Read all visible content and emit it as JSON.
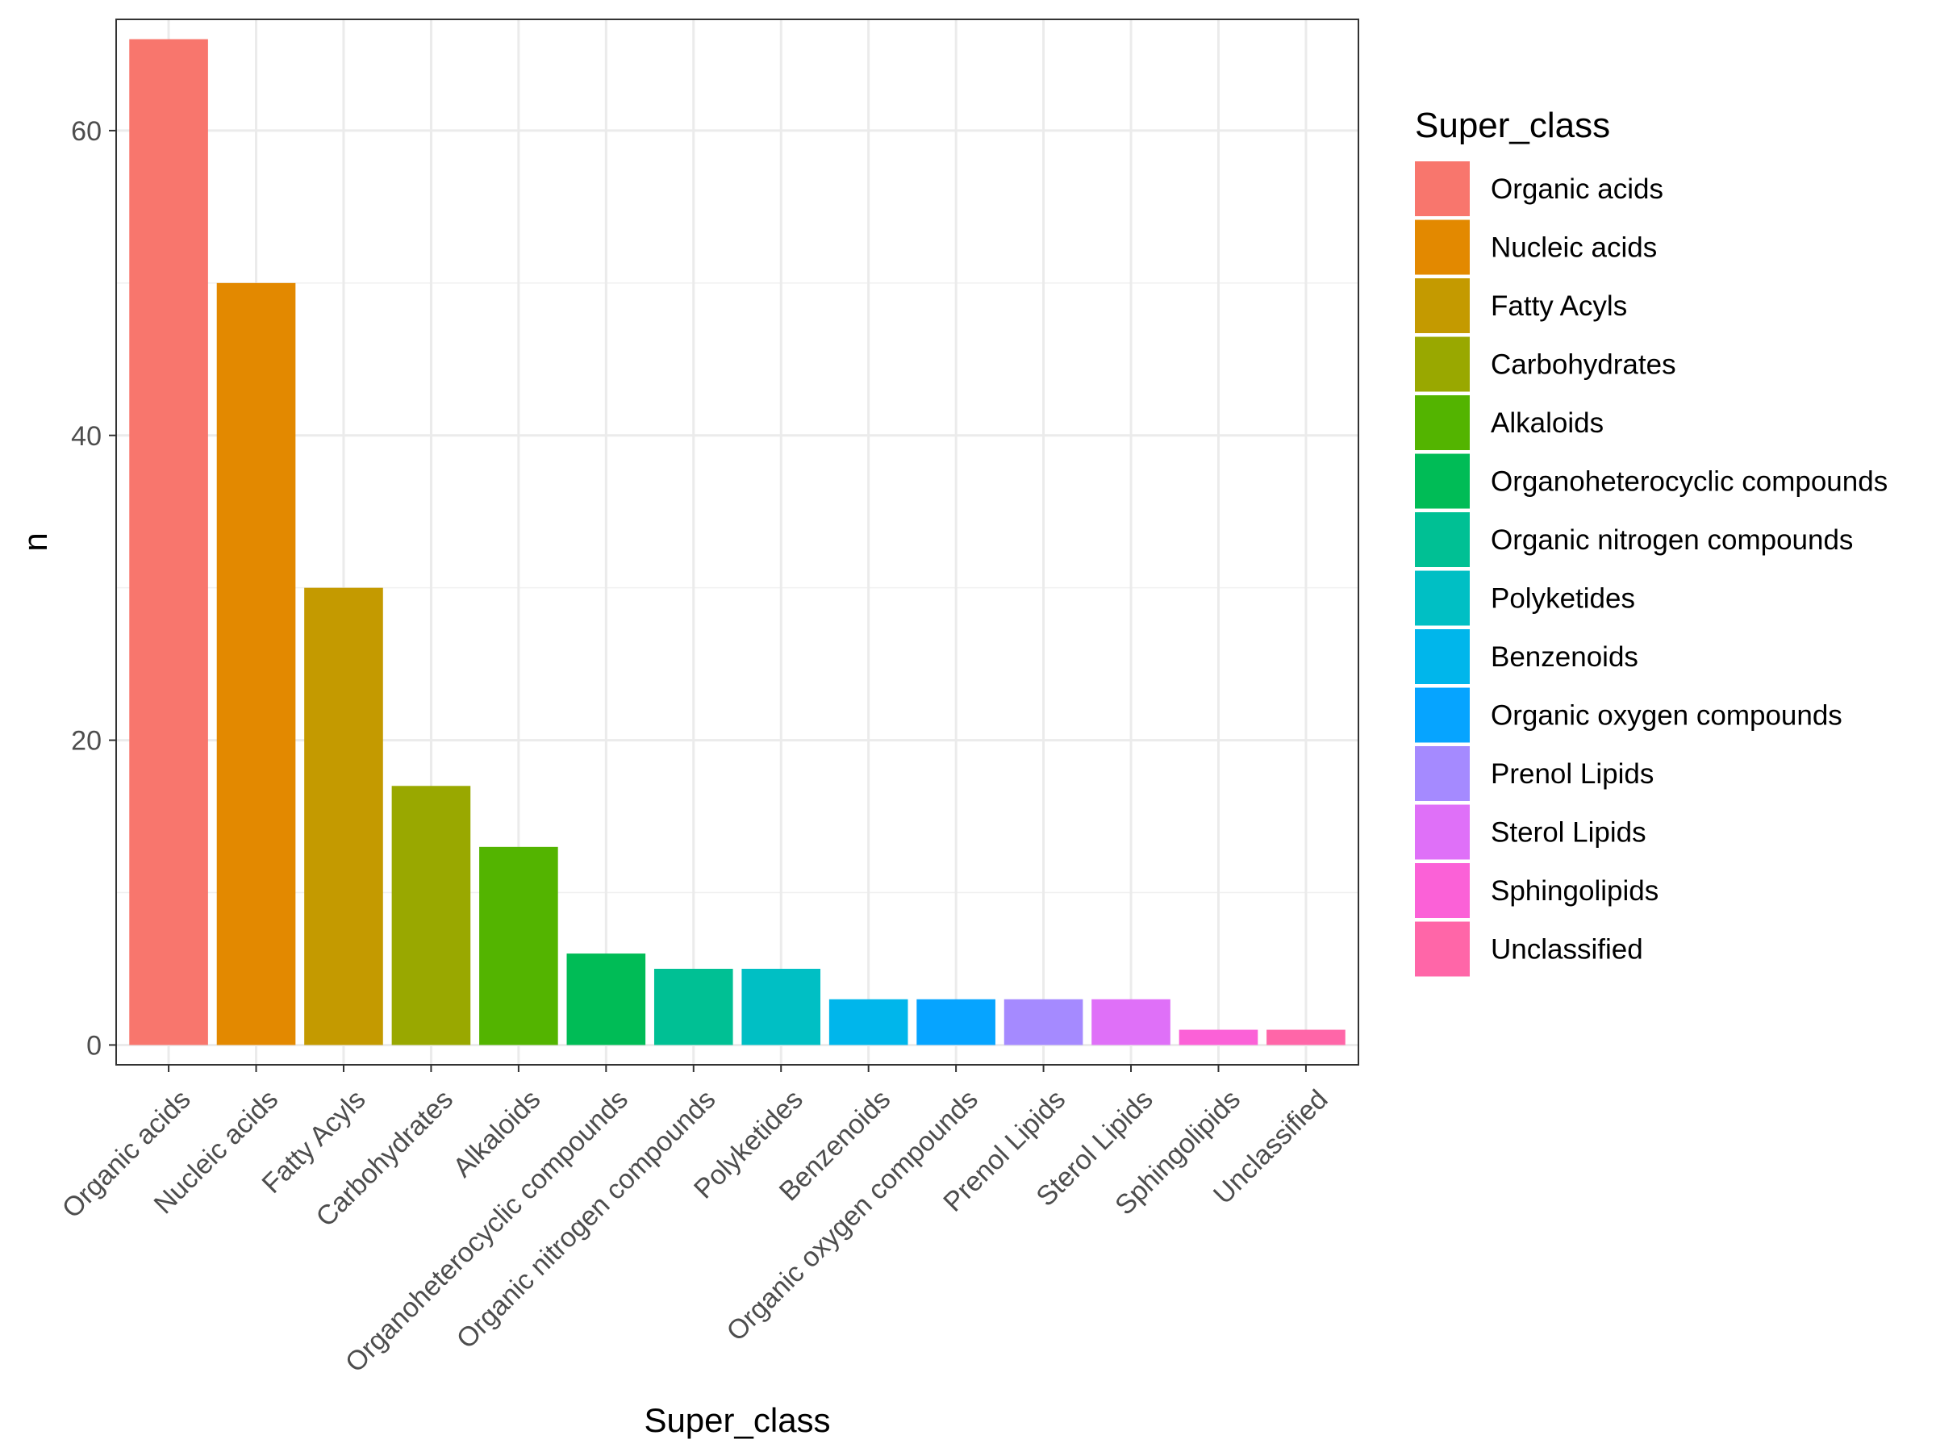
{
  "chart_data": {
    "type": "bar",
    "title": "",
    "xlabel": "Super_class",
    "ylabel": "n",
    "ylim": [
      -1.3,
      67.3
    ],
    "yticks": [
      0,
      20,
      40,
      60
    ],
    "grid": true,
    "legend_title": "Super_class",
    "legend_position": "right",
    "categories": [
      "Organic acids",
      "Nucleic acids",
      "Fatty Acyls",
      "Carbohydrates",
      "Alkaloids",
      "Organoheterocyclic compounds",
      "Organic nitrogen compounds",
      "Polyketides",
      "Benzenoids",
      "Organic oxygen compounds",
      "Prenol Lipids",
      "Sterol Lipids",
      "Sphingolipids",
      "Unclassified"
    ],
    "values": [
      66,
      50,
      30,
      17,
      13,
      6,
      5,
      5,
      3,
      3,
      3,
      3,
      1,
      1
    ],
    "colors": [
      "#F8766D",
      "#E38900",
      "#C49A00",
      "#99A800",
      "#53B400",
      "#00BC56",
      "#00C094",
      "#00BFC4",
      "#00B6EB",
      "#06A4FF",
      "#A58AFF",
      "#DF70F8",
      "#FB61D7",
      "#FF66A8"
    ]
  }
}
